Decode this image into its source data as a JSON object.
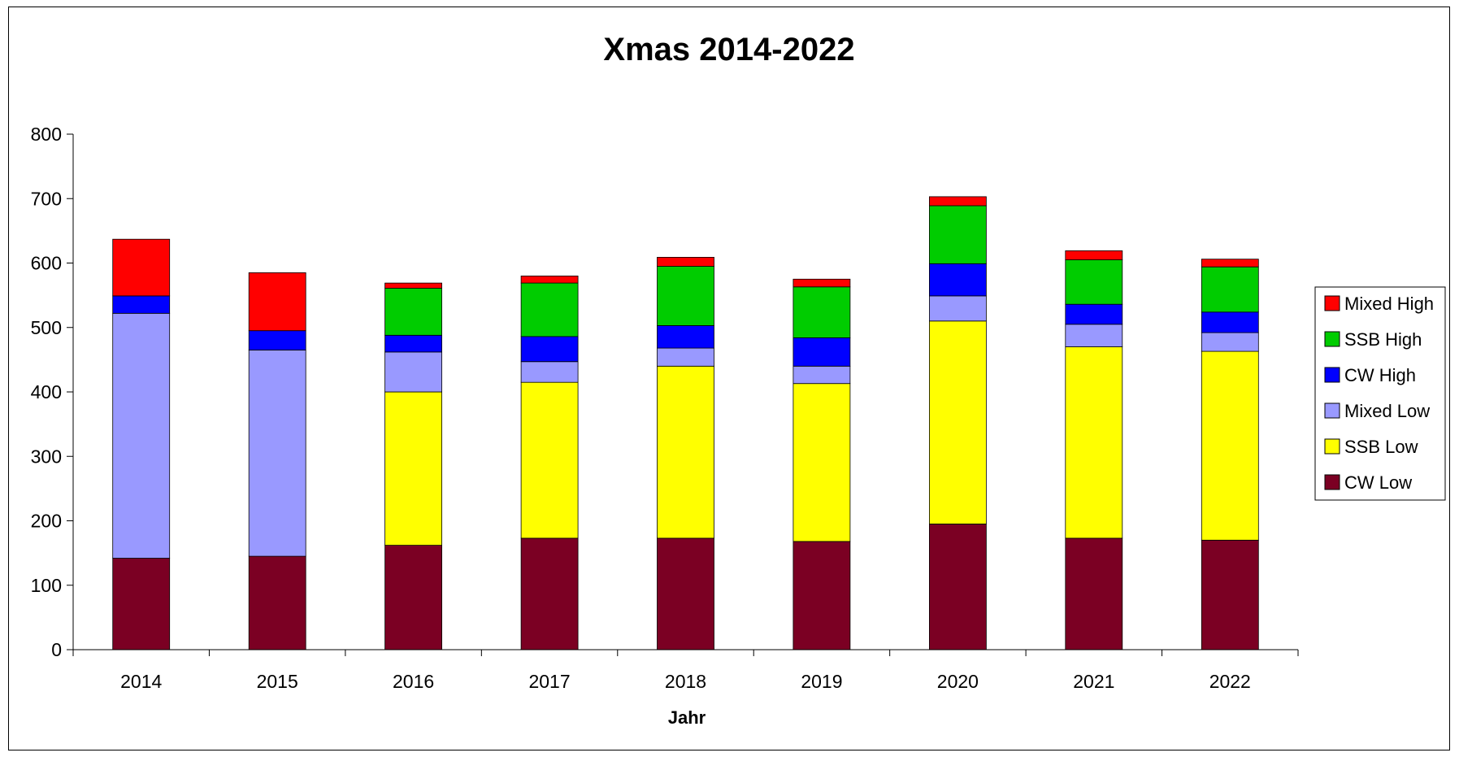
{
  "chart_data": {
    "type": "bar",
    "stacked": true,
    "title": "Xmas 2014-2022",
    "xlabel": "Jahr",
    "ylabel": "",
    "ylim": [
      0,
      800
    ],
    "yticks": [
      0,
      100,
      200,
      300,
      400,
      500,
      600,
      700,
      800
    ],
    "grid": false,
    "legend_position": "right",
    "categories": [
      "2014",
      "2015",
      "2016",
      "2017",
      "2018",
      "2019",
      "2020",
      "2021",
      "2022"
    ],
    "series": [
      {
        "name": "CW Low",
        "color": "#7b0023",
        "values": [
          142,
          145,
          162,
          173,
          173,
          168,
          195,
          173,
          170
        ]
      },
      {
        "name": "SSB Low",
        "color": "#ffff00",
        "values": [
          0,
          0,
          238,
          242,
          267,
          245,
          315,
          297,
          293
        ]
      },
      {
        "name": "Mixed Low",
        "color": "#9999ff",
        "values": [
          380,
          320,
          62,
          32,
          28,
          27,
          39,
          35,
          29
        ]
      },
      {
        "name": "CW High",
        "color": "#0000ff",
        "values": [
          27,
          30,
          26,
          39,
          35,
          44,
          50,
          31,
          32
        ]
      },
      {
        "name": "SSB High",
        "color": "#00cc00",
        "values": [
          0,
          0,
          73,
          83,
          92,
          79,
          90,
          69,
          70
        ]
      },
      {
        "name": "Mixed High",
        "color": "#ff0000",
        "values": [
          88,
          90,
          8,
          11,
          14,
          12,
          14,
          14,
          12
        ]
      }
    ]
  }
}
